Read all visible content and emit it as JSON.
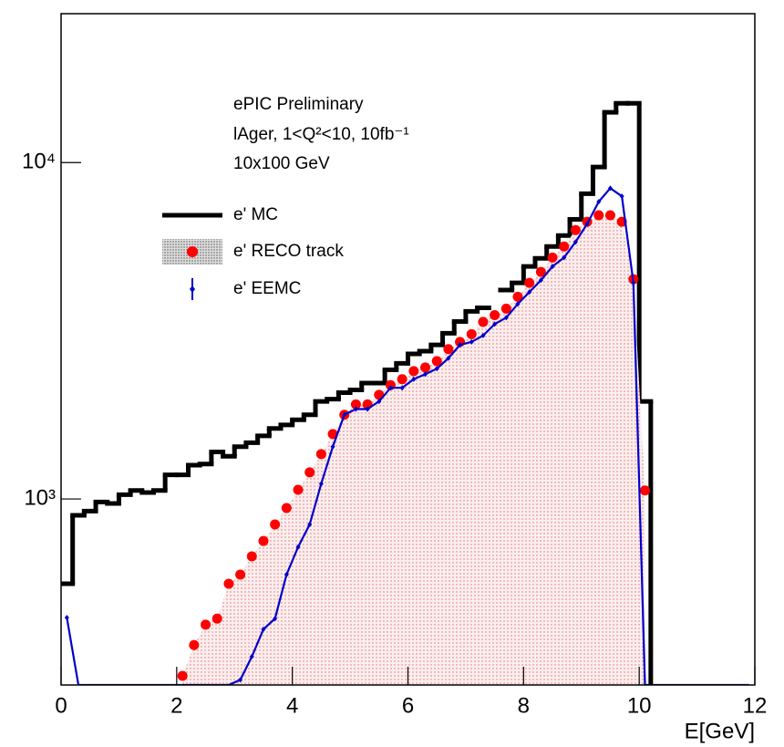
{
  "chart_data": {
    "type": "histogram",
    "annotations": [
      "ePIC Preliminary",
      "lAger, 1<Q²<10, 10fb⁻¹",
      "10x100 GeV"
    ],
    "x_label": "E[GeV]",
    "log_y": true,
    "bins": [
      0,
      0.2,
      0.4,
      0.6,
      0.8,
      1,
      1.2,
      1.4,
      1.6,
      1.8,
      2,
      2.2,
      2.4,
      2.6,
      2.8,
      3,
      3.2,
      3.4,
      3.6,
      3.8,
      4,
      4.2,
      4.4,
      4.6,
      4.8,
      5,
      5.2,
      5.4,
      5.6,
      5.8,
      6,
      6.2,
      6.4,
      6.6,
      6.8,
      7,
      7.2,
      7.4,
      7.6,
      7.8,
      8,
      8.2,
      8.4,
      8.6,
      8.8,
      9,
      9.2,
      9.4,
      9.6,
      9.8,
      10,
      10.2,
      10.4,
      10.6,
      10.8,
      11,
      11.2,
      11.4,
      11.6,
      11.8,
      12
    ],
    "series": [
      {
        "name": "e' MC",
        "color": "#000000",
        "style": "step",
        "values": [
          560,
          894,
          920,
          980,
          970,
          1030,
          1060,
          1045,
          1060,
          1180,
          1180,
          1260,
          1270,
          1380,
          1340,
          1430,
          1470,
          1540,
          1620,
          1660,
          1720,
          1780,
          1950,
          1980,
          2070,
          2110,
          2210,
          2210,
          2420,
          2530,
          2700,
          2750,
          2870,
          3110,
          3370,
          3610,
          3700,
          null,
          4180,
          4390,
          4910,
          5190,
          5630,
          6070,
          6780,
          8080,
          9700,
          14100,
          15000,
          15000,
          1950,
          0,
          0,
          0,
          0,
          0,
          0,
          0,
          0,
          0
        ]
      },
      {
        "name": "e' RECO track",
        "color": "#ff0000",
        "style": "markers-area",
        "values": [
          null,
          null,
          null,
          null,
          null,
          null,
          null,
          null,
          null,
          null,
          298,
          368,
          423,
          441,
          560,
          596,
          675,
          750,
          840,
          940,
          1065,
          1200,
          1360,
          1560,
          1780,
          1910,
          1910,
          2040,
          2180,
          2270,
          2400,
          2460,
          2570,
          2790,
          2930,
          3090,
          3360,
          3520,
          3680,
          3990,
          4390,
          4730,
          5220,
          5630,
          6300,
          6670,
          6970,
          6970,
          6670,
          4500,
          1060,
          null,
          null,
          null,
          null,
          null,
          null,
          null,
          null,
          null
        ]
      },
      {
        "name": "e' EEMC",
        "color": "#0000cc",
        "style": "line",
        "values": [
          444,
          0,
          0,
          0,
          0,
          0,
          0,
          0,
          0,
          0,
          0,
          0,
          0,
          0,
          0,
          290,
          340,
          410,
          441,
          596,
          720,
          840,
          1110,
          1430,
          1780,
          1850,
          1850,
          1950,
          2140,
          2140,
          2270,
          2350,
          2440,
          2620,
          2870,
          2930,
          3060,
          3310,
          3460,
          3800,
          4120,
          4470,
          4910,
          5220,
          5810,
          6570,
          7650,
          8390,
          7940,
          4390,
          0,
          0,
          0,
          0,
          0,
          0,
          0,
          0,
          0,
          0
        ]
      }
    ],
    "xlim": [
      0,
      12
    ],
    "xticks": [
      0,
      2,
      4,
      6,
      8,
      10,
      12
    ],
    "ylim": [
      280,
      27700
    ],
    "yticks": [
      {
        "value": 1000,
        "label": "10³"
      },
      {
        "value": 10000,
        "label": "10⁴"
      }
    ]
  }
}
